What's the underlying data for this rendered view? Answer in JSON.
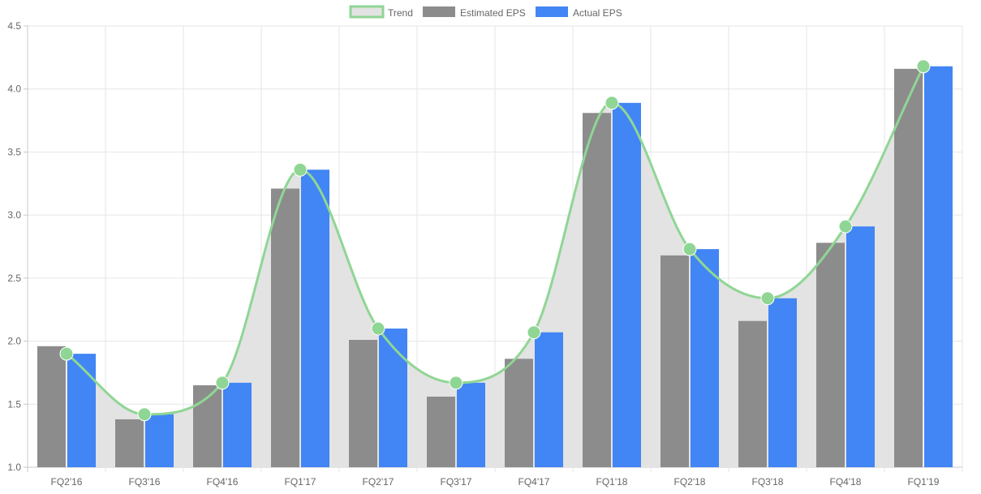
{
  "chart_data": {
    "type": "bar",
    "title": "",
    "xlabel": "",
    "ylabel": "",
    "categories": [
      "FQ2'16",
      "FQ3'16",
      "FQ4'16",
      "FQ1'17",
      "FQ2'17",
      "FQ3'17",
      "FQ4'17",
      "FQ1'18",
      "FQ2'18",
      "FQ3'18",
      "FQ4'18",
      "FQ1'19"
    ],
    "ylim": [
      1.0,
      4.5
    ],
    "yticks": [
      "1.0",
      "1.5",
      "2.0",
      "2.5",
      "3.0",
      "3.5",
      "4.0",
      "4.5"
    ],
    "grid": true,
    "legend_position": "top-center",
    "series": [
      {
        "name": "Trend",
        "type": "line",
        "color": "#8fd694",
        "fill": "#e3e3e3",
        "values": [
          1.9,
          1.42,
          1.67,
          3.36,
          2.1,
          1.67,
          2.07,
          3.89,
          2.73,
          2.34,
          2.91,
          4.18
        ]
      },
      {
        "name": "Estimated EPS",
        "type": "bar",
        "color": "#8c8c8c",
        "values": [
          1.96,
          1.38,
          1.65,
          3.21,
          2.01,
          1.56,
          1.86,
          3.81,
          2.68,
          2.16,
          2.78,
          4.16
        ]
      },
      {
        "name": "Actual EPS",
        "type": "bar",
        "color": "#4285f4",
        "values": [
          1.9,
          1.42,
          1.67,
          3.36,
          2.1,
          1.67,
          2.07,
          3.89,
          2.73,
          2.34,
          2.91,
          4.18
        ]
      }
    ]
  }
}
